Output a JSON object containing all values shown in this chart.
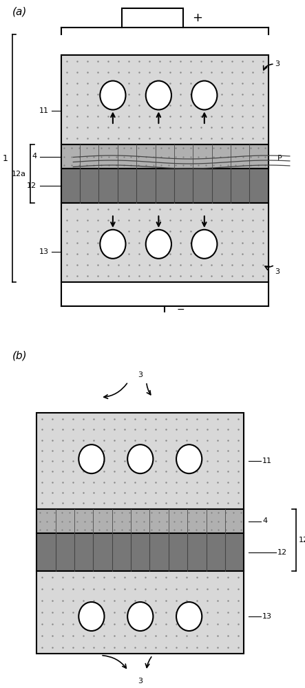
{
  "bg_color": "#ffffff",
  "label_a": "(a)",
  "label_b": "(b)",
  "dot_color": "#999999",
  "top_layer_bg": "#d8d8d8",
  "mid_layer4_color": "#aaaaaa",
  "mid_layer12_color": "#777777",
  "bot_layer_bg": "#d8d8d8",
  "circle_color": "#ffffff",
  "line_color": "#000000",
  "plus": "+",
  "minus": "−",
  "label_1": "1",
  "label_11": "11",
  "label_12a": "12a",
  "label_12": "12",
  "label_4": "4",
  "label_13": "13",
  "label_3": "3",
  "label_P": "P"
}
